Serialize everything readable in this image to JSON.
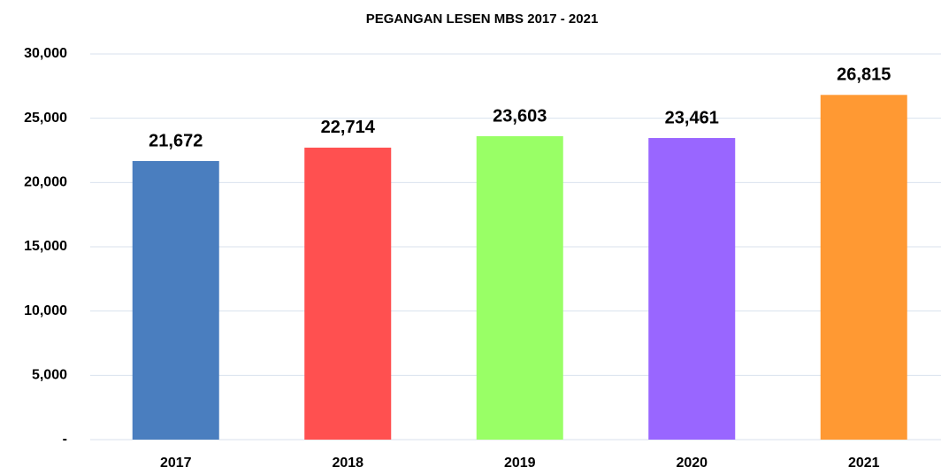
{
  "chart_data": {
    "type": "bar",
    "title": "PEGANGAN LESEN MBS 2017 - 2021",
    "categories": [
      "2017",
      "2018",
      "2019",
      "2020",
      "2021"
    ],
    "values": [
      21672,
      22714,
      23603,
      23461,
      26815
    ],
    "value_labels": [
      "21,672",
      "22,714",
      "23,603",
      "23,461",
      "26,815"
    ],
    "colors": [
      "#4a7ebf",
      "#ff5050",
      "#99ff66",
      "#9966ff",
      "#ff9933"
    ],
    "ylim": [
      0,
      30000
    ],
    "yticks": [
      {
        "value": 0,
        "label": "-"
      },
      {
        "value": 5000,
        "label": "5,000"
      },
      {
        "value": 10000,
        "label": "10,000"
      },
      {
        "value": 15000,
        "label": "15,000"
      },
      {
        "value": 20000,
        "label": "20,000"
      },
      {
        "value": 25000,
        "label": "25,000"
      },
      {
        "value": 30000,
        "label": "30,000"
      }
    ],
    "grid": true
  }
}
